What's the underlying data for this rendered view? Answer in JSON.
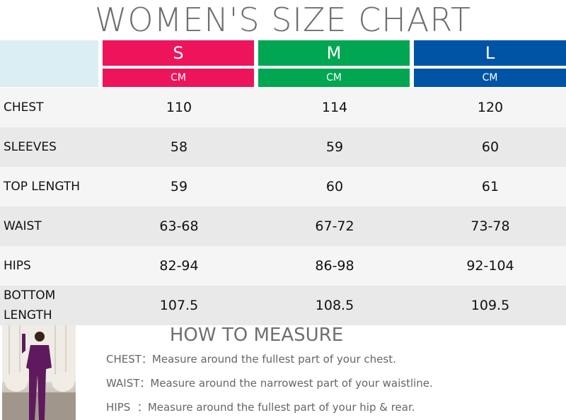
{
  "title": "WOMEN'S SIZE CHART",
  "sizes": [
    {
      "label": "S",
      "unit": "CM",
      "color": "#ee145b"
    },
    {
      "label": "M",
      "unit": "CM",
      "color": "#00a651"
    },
    {
      "label": "L",
      "unit": "CM",
      "color": "#0054a6"
    }
  ],
  "rows": [
    {
      "label": "CHEST",
      "values": [
        "110",
        "114",
        "120"
      ]
    },
    {
      "label": "SLEEVES",
      "values": [
        "58",
        "59",
        "60"
      ]
    },
    {
      "label": "TOP LENGTH",
      "values": [
        "59",
        "60",
        "61"
      ]
    },
    {
      "label": "WAIST",
      "values": [
        "63-68",
        "67-72",
        "73-78"
      ]
    },
    {
      "label": "HIPS",
      "values": [
        "82-94",
        "86-98",
        "92-104"
      ]
    },
    {
      "label": "BOTTOM LENGTH",
      "values": [
        "107.5",
        "108.5",
        "109.5"
      ]
    }
  ],
  "how_to_measure": {
    "title": "HOW TO MEASURE",
    "items": [
      {
        "label": "CHEST：",
        "text": "Measure around the fullest part of your chest."
      },
      {
        "label": "WAIST：",
        "text": "Measure around the narrowest part of your waistline."
      },
      {
        "label": "HIPS  ：",
        "text": "Measure around the fullest part of your hip & rear."
      }
    ]
  }
}
